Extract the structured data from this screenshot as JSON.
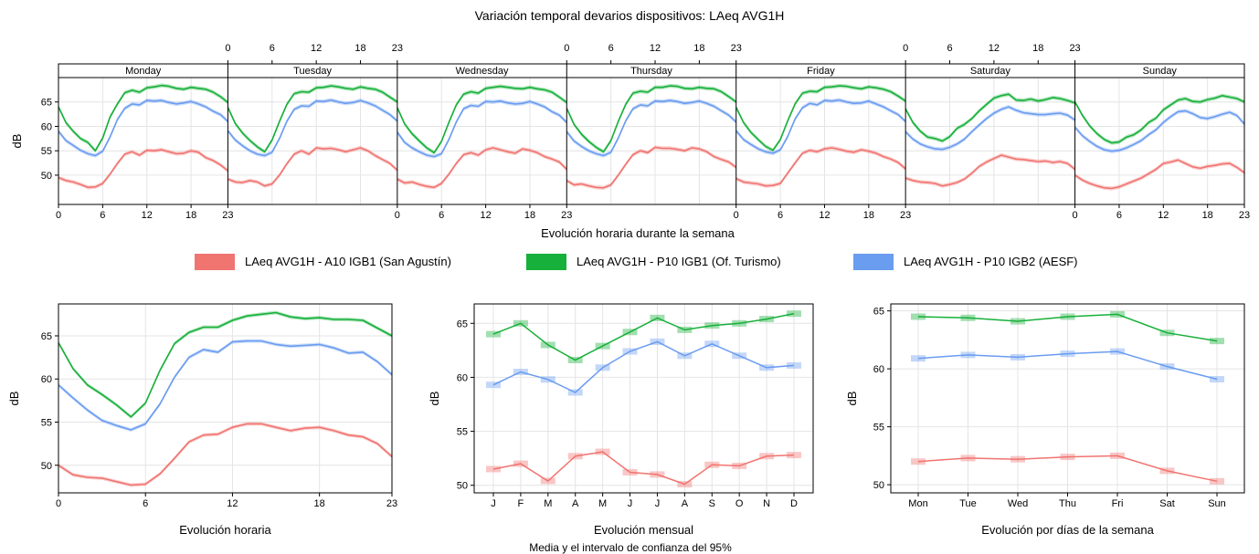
{
  "title": "Variación temporal devarios dispositivos: LAeq AVG1H",
  "colors": {
    "red": "#f07470",
    "green": "#17b03a",
    "blue": "#6a9cf0"
  },
  "legend": [
    {
      "label": "LAeq AVG1H - A10 IGB1 (San Agustín)",
      "color": "#f07470"
    },
    {
      "label": "LAeq AVG1H - P10 IGB1 (Of. Turismo)",
      "color": "#17b03a"
    },
    {
      "label": "LAeq AVG1H - P10 IGB2 (AESF)",
      "color": "#6a9cf0"
    }
  ],
  "bottom_subtitle": "Media y el intervalo de confianza del 95%",
  "chart_data": [
    {
      "id": "weekly",
      "type": "line",
      "panels": [
        "Monday",
        "Tuesday",
        "Wednesday",
        "Thursday",
        "Friday",
        "Saturday",
        "Sunday"
      ],
      "hour_ticks": [
        "0",
        "6",
        "12",
        "18",
        "23"
      ],
      "xlabel": "Evolución horaria durante la semana",
      "ylabel": "dB",
      "ylim": [
        44,
        70
      ],
      "yticks": [
        50,
        55,
        60,
        65
      ],
      "series": [
        {
          "name": "LAeq AVG1H - A10 IGB1 (San Agustín)",
          "color": "#f07470",
          "days": [
            [
              49.5,
              48.9,
              48.6,
              48.1,
              47.5,
              47.6,
              48.3,
              50.2,
              52.4,
              54.3,
              54.8,
              54.1,
              55.1,
              55.0,
              55.2,
              54.8,
              54.4,
              54.5,
              55.0,
              54.7,
              53.6,
              53.0,
              52.1,
              50.9
            ],
            [
              49.2,
              48.6,
              48.5,
              48.9,
              48.6,
              47.8,
              48.2,
              50.0,
              52.3,
              54.3,
              55.0,
              54.3,
              55.6,
              55.4,
              55.5,
              55.2,
              54.8,
              55.2,
              55.6,
              55.0,
              54.0,
              53.2,
              52.4,
              51.0
            ],
            [
              49.2,
              48.4,
              48.6,
              48.1,
              47.7,
              47.5,
              48.3,
              50.2,
              52.4,
              54.2,
              54.6,
              54.1,
              55.2,
              55.6,
              55.2,
              54.8,
              54.5,
              55.4,
              55.1,
              54.6,
              53.8,
              53.3,
              52.7,
              51.2
            ],
            [
              48.9,
              48.0,
              48.2,
              47.8,
              47.5,
              47.4,
              48.0,
              50.0,
              52.2,
              54.2,
              55.0,
              54.6,
              55.7,
              55.5,
              55.5,
              55.3,
              55.0,
              55.6,
              55.4,
              54.8,
              53.8,
              53.2,
              52.7,
              51.6
            ],
            [
              49.3,
              48.6,
              48.4,
              48.2,
              47.8,
              47.9,
              48.3,
              50.4,
              52.5,
              54.5,
              55.1,
              54.8,
              55.4,
              55.6,
              55.3,
              54.9,
              54.7,
              55.2,
              54.9,
              54.5,
              53.8,
              53.3,
              52.6,
              51.3
            ],
            [
              49.4,
              48.9,
              48.6,
              48.5,
              48.3,
              47.8,
              48.1,
              48.5,
              49.2,
              50.4,
              51.8,
              52.7,
              53.4,
              54.1,
              53.7,
              53.3,
              53.2,
              53.0,
              52.8,
              52.9,
              52.6,
              52.8,
              52.4,
              51.2
            ],
            [
              50.0,
              49.0,
              48.3,
              47.8,
              47.4,
              47.3,
              47.6,
              48.2,
              48.8,
              49.4,
              50.3,
              51.2,
              52.4,
              52.7,
              53.1,
              52.4,
              51.7,
              51.4,
              51.8,
              52.0,
              52.3,
              52.4,
              51.6,
              50.5
            ]
          ]
        },
        {
          "name": "LAeq AVG1H - P10 IGB1 (Of. Turismo)",
          "color": "#17b03a",
          "days": [
            [
              64.0,
              60.8,
              59.0,
              57.5,
              56.7,
              55.0,
              57.6,
              61.9,
              64.6,
              66.9,
              67.4,
              67.0,
              67.9,
              68.1,
              68.4,
              68.2,
              67.8,
              67.6,
              68.0,
              67.8,
              67.6,
              67.0,
              66.1,
              64.9
            ],
            [
              63.9,
              60.6,
              58.6,
              57.1,
              55.8,
              54.8,
              57.2,
              61.0,
              64.5,
              66.7,
              67.1,
              67.0,
              67.9,
              68.0,
              68.3,
              68.1,
              67.8,
              67.6,
              68.1,
              67.8,
              67.6,
              67.0,
              66.0,
              65.0
            ],
            [
              63.8,
              60.5,
              58.5,
              57.0,
              55.6,
              54.6,
              56.9,
              60.8,
              64.4,
              66.6,
              67.1,
              66.8,
              67.8,
              68.0,
              68.2,
              68.0,
              67.8,
              67.7,
              68.0,
              67.7,
              67.5,
              67.0,
              66.0,
              64.9
            ],
            [
              63.7,
              60.4,
              58.4,
              56.9,
              55.7,
              54.8,
              57.1,
              61.0,
              64.5,
              66.8,
              67.2,
              67.0,
              68.0,
              68.0,
              68.3,
              68.2,
              67.8,
              67.7,
              68.0,
              67.8,
              67.7,
              67.1,
              66.1,
              65.0
            ],
            [
              63.9,
              60.8,
              58.8,
              57.3,
              55.9,
              55.1,
              57.3,
              61.1,
              64.6,
              66.8,
              67.2,
              67.1,
              68.0,
              68.1,
              68.3,
              68.2,
              67.9,
              67.7,
              68.1,
              67.9,
              67.6,
              67.1,
              66.2,
              65.2
            ],
            [
              63.6,
              60.8,
              59.0,
              57.8,
              57.5,
              57.0,
              57.9,
              59.6,
              60.4,
              61.6,
              63.2,
              64.5,
              65.8,
              66.3,
              66.6,
              65.4,
              65.3,
              65.6,
              65.2,
              65.5,
              65.9,
              65.7,
              65.3,
              64.8
            ],
            [
              65.0,
              62.3,
              60.1,
              58.5,
              57.3,
              56.6,
              56.8,
              57.8,
              58.3,
              59.3,
              60.8,
              61.7,
              63.4,
              64.4,
              65.4,
              65.7,
              65.1,
              65.0,
              65.5,
              65.8,
              66.3,
              66.0,
              65.7,
              65.0
            ]
          ]
        },
        {
          "name": "LAeq AVG1H - P10 IGB2 (AESF)",
          "color": "#6a9cf0",
          "days": [
            [
              59.0,
              57.1,
              56.1,
              55.1,
              54.4,
              54.0,
              54.9,
              57.8,
              61.4,
              63.7,
              64.6,
              64.4,
              65.3,
              65.2,
              65.3,
              64.9,
              64.6,
              64.8,
              65.1,
              64.6,
              64.0,
              63.1,
              62.4,
              61.0
            ],
            [
              59.1,
              57.2,
              56.0,
              55.0,
              54.3,
              54.0,
              54.7,
              57.5,
              61.0,
              63.5,
              64.2,
              64.1,
              65.2,
              65.1,
              65.4,
              65.0,
              64.7,
              64.9,
              65.3,
              64.8,
              64.2,
              63.3,
              62.4,
              61.1
            ],
            [
              58.8,
              56.7,
              55.6,
              54.8,
              54.1,
              53.8,
              54.4,
              57.3,
              60.9,
              63.6,
              64.3,
              64.1,
              65.1,
              65.0,
              65.2,
              64.8,
              64.6,
              64.7,
              65.1,
              64.6,
              64.0,
              63.0,
              62.3,
              60.8
            ],
            [
              58.9,
              57.0,
              55.9,
              55.0,
              54.4,
              54.0,
              54.7,
              57.6,
              61.1,
              63.6,
              64.4,
              64.2,
              65.2,
              65.1,
              65.3,
              65.1,
              64.7,
              64.9,
              65.2,
              64.7,
              64.1,
              63.2,
              62.3,
              60.9
            ],
            [
              59.1,
              57.3,
              56.3,
              55.4,
              54.8,
              54.5,
              55.2,
              57.9,
              61.5,
              63.8,
              64.7,
              64.4,
              65.3,
              65.2,
              65.4,
              65.0,
              64.7,
              64.8,
              65.2,
              64.6,
              64.0,
              63.2,
              62.4,
              61.0
            ],
            [
              58.9,
              57.4,
              56.4,
              55.8,
              55.4,
              55.3,
              55.7,
              56.4,
              57.4,
              58.9,
              60.3,
              61.6,
              62.7,
              63.5,
              64.0,
              63.3,
              62.8,
              62.6,
              62.4,
              62.4,
              62.6,
              62.7,
              62.3,
              61.3
            ],
            [
              59.8,
              58.1,
              56.9,
              55.9,
              55.2,
              54.9,
              55.1,
              55.6,
              56.3,
              57.1,
              58.3,
              59.3,
              60.8,
              62.0,
              63.0,
              63.2,
              62.6,
              61.8,
              61.6,
              62.0,
              62.5,
              62.9,
              62.2,
              60.5
            ]
          ]
        }
      ]
    },
    {
      "id": "hourly",
      "type": "line",
      "xlabel": "Evolución horaria",
      "ylabel": "dB",
      "x": [
        0,
        1,
        2,
        3,
        4,
        5,
        6,
        7,
        8,
        9,
        10,
        11,
        12,
        13,
        14,
        15,
        16,
        17,
        18,
        19,
        20,
        21,
        22,
        23
      ],
      "xticks": [
        0,
        6,
        12,
        18,
        23
      ],
      "xlim": [
        0,
        23
      ],
      "ylim": [
        46.8,
        68.7
      ],
      "yticks": [
        50,
        55,
        60,
        65
      ],
      "series": [
        {
          "name": "LAeq AVG1H - A10 IGB1 (San Agustín)",
          "color": "#f07470",
          "values": [
            50.0,
            48.9,
            48.6,
            48.5,
            48.1,
            47.7,
            47.8,
            49.0,
            50.8,
            52.7,
            53.5,
            53.6,
            54.4,
            54.8,
            54.8,
            54.4,
            54.0,
            54.3,
            54.4,
            54.0,
            53.5,
            53.3,
            52.5,
            51.0
          ]
        },
        {
          "name": "LAeq AVG1H - P10 IGB1 (Of. Turismo)",
          "color": "#17b03a",
          "values": [
            64.2,
            61.2,
            59.3,
            58.2,
            57.0,
            55.6,
            57.2,
            61.0,
            64.1,
            65.4,
            66.0,
            66.0,
            66.8,
            67.3,
            67.5,
            67.7,
            67.2,
            67.0,
            67.1,
            66.9,
            66.9,
            66.8,
            65.9,
            65.0
          ]
        },
        {
          "name": "LAeq AVG1H - P10 IGB2 (AESF)",
          "color": "#6a9cf0",
          "values": [
            59.3,
            57.8,
            56.4,
            55.2,
            54.6,
            54.1,
            54.8,
            57.1,
            60.2,
            62.5,
            63.4,
            63.1,
            64.3,
            64.4,
            64.4,
            64.0,
            63.8,
            63.9,
            64.0,
            63.6,
            63.0,
            63.1,
            62.0,
            60.5
          ]
        }
      ]
    },
    {
      "id": "monthly",
      "type": "line",
      "xlabel": "Evolución mensual",
      "ylabel": "dB",
      "categories": [
        "J",
        "F",
        "M",
        "A",
        "M",
        "J",
        "J",
        "A",
        "S",
        "O",
        "N",
        "D"
      ],
      "ylim": [
        49.3,
        66.8
      ],
      "yticks": [
        50,
        55,
        60,
        65
      ],
      "series": [
        {
          "name": "LAeq AVG1H - A10 IGB1 (San Agustín)",
          "color": "#f07470",
          "values": [
            51.5,
            52.0,
            50.4,
            52.7,
            53.1,
            51.2,
            51.0,
            50.1,
            51.9,
            51.8,
            52.7,
            52.8
          ]
        },
        {
          "name": "LAeq AVG1H - P10 IGB1 (Of. Turismo)",
          "color": "#17b03a",
          "values": [
            64.0,
            65.0,
            63.0,
            61.6,
            62.9,
            64.2,
            65.5,
            64.4,
            64.8,
            65.0,
            65.4,
            65.9
          ]
        },
        {
          "name": "LAeq AVG1H - P10 IGB2 (AESF)",
          "color": "#6a9cf0",
          "values": [
            59.3,
            60.5,
            59.8,
            58.6,
            60.9,
            62.4,
            63.3,
            62.0,
            63.1,
            62.0,
            60.9,
            61.1
          ]
        }
      ]
    },
    {
      "id": "weekday",
      "type": "line",
      "xlabel": "Evolución por días de la semana",
      "ylabel": "dB",
      "categories": [
        "Mon",
        "Tue",
        "Wed",
        "Thu",
        "Fri",
        "Sat",
        "Sun"
      ],
      "ylim": [
        49.3,
        65.6
      ],
      "yticks": [
        50,
        55,
        60,
        65
      ],
      "series": [
        {
          "name": "LAeq AVG1H - A10 IGB1 (San Agustín)",
          "color": "#f07470",
          "values": [
            52.0,
            52.3,
            52.2,
            52.4,
            52.5,
            51.2,
            50.3
          ]
        },
        {
          "name": "LAeq AVG1H - P10 IGB1 (Of. Turismo)",
          "color": "#17b03a",
          "values": [
            64.5,
            64.4,
            64.1,
            64.5,
            64.7,
            63.1,
            62.4
          ]
        },
        {
          "name": "LAeq AVG1H - P10 IGB2 (AESF)",
          "color": "#6a9cf0",
          "values": [
            60.9,
            61.2,
            61.0,
            61.3,
            61.5,
            60.2,
            59.1
          ]
        }
      ]
    }
  ]
}
